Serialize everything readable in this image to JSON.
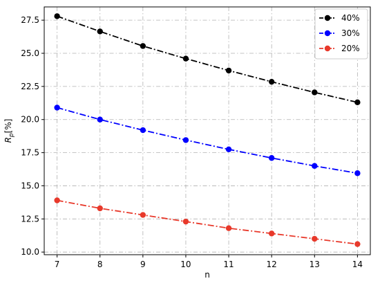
{
  "chart_data": {
    "type": "line",
    "title": "",
    "xlabel": "n",
    "ylabel_main": "R",
    "ylabel_sub": "p",
    "ylabel_unit": "[%]",
    "x": [
      7,
      8,
      9,
      10,
      11,
      12,
      13,
      14
    ],
    "x_ticks": [
      "7",
      "8",
      "9",
      "10",
      "11",
      "12",
      "13",
      "14"
    ],
    "xlim": [
      6.7,
      14.3
    ],
    "ylim": [
      9.8,
      28.5
    ],
    "y_ticks": [
      "10.0",
      "12.5",
      "15.0",
      "17.5",
      "20.0",
      "22.5",
      "25.0",
      "27.5"
    ],
    "grid": true,
    "legend_position": "top-right",
    "series": [
      {
        "name": "40%",
        "color": "#000000",
        "values": [
          27.8,
          26.65,
          25.55,
          24.6,
          23.7,
          22.85,
          22.05,
          21.3
        ]
      },
      {
        "name": "30%",
        "color": "#0000ff",
        "values": [
          20.9,
          20.0,
          19.2,
          18.45,
          17.75,
          17.1,
          16.5,
          15.95
        ]
      },
      {
        "name": "20%",
        "color": "#e8392b",
        "values": [
          13.9,
          13.3,
          12.8,
          12.3,
          11.8,
          11.4,
          11.0,
          10.6
        ]
      }
    ]
  }
}
